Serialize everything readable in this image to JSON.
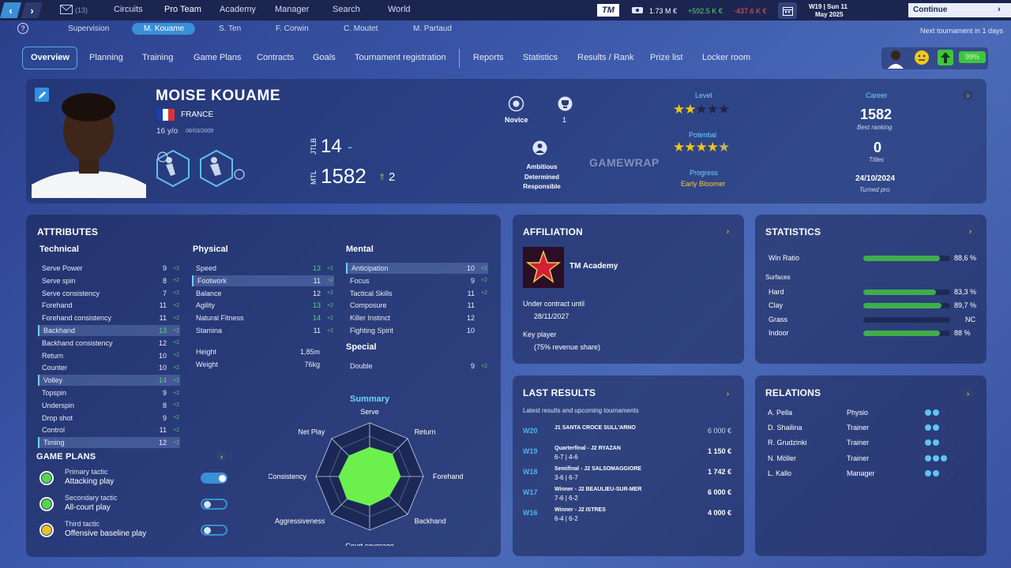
{
  "topbar": {
    "mail_count": "(13)",
    "nav": [
      "Circuits",
      "Pro Team",
      "Academy",
      "Manager",
      "Search",
      "World"
    ],
    "logo": "TM",
    "money": "1.73 M €",
    "gain": "+592.5 K €",
    "loss": "-437.6 K €",
    "week": "W19 | Sun 11",
    "month": "May 2025",
    "continue": "Continue"
  },
  "subnav": {
    "items": [
      "Supervision",
      "M. Kouame",
      "S. Ten",
      "F. Corwin",
      "C. Moutet",
      "M. Partaud"
    ],
    "next": "Next tournament in 1 days"
  },
  "tabs": [
    "Overview",
    "Planning",
    "Training",
    "Game Plans",
    "Contracts",
    "Goals",
    "Tournament registration",
    "Reports",
    "Statistics",
    "Results / Rank",
    "Prize list",
    "Locker room"
  ],
  "mood": {
    "energy": "99%"
  },
  "player": {
    "name": "MOISE KOUAME",
    "country": "FRANCE",
    "age": "16 y/o",
    "dob": "06/03/2009",
    "jtlb_label": "JTLB",
    "jtlb": "14",
    "jtlb_dash": "-",
    "mtl_label": "MTL",
    "mtl": "1582",
    "mtl_change": "2",
    "rank_label": "Novice",
    "titles_small": "1",
    "traits": [
      "Ambitious",
      "Determined",
      "Responsible"
    ],
    "level_label": "Level",
    "level_stars": 2,
    "potential_label": "Potential",
    "potential_stars": 4.5,
    "progress_label": "Progress",
    "progress": "Early Bloomer",
    "career_label": "Career",
    "best_ranking": "1582",
    "best_ranking_label": "Best ranking",
    "titles": "0",
    "titles_label": "Titles",
    "turned_pro": "24/10/2024",
    "turned_pro_label": "Turned pro",
    "watermark": "GAMEWRAP"
  },
  "attributes": {
    "title": "ATTRIBUTES",
    "technical_title": "Technical",
    "technical": [
      {
        "n": "Serve Power",
        "v": "9",
        "p": "+2"
      },
      {
        "n": "Serve spin",
        "v": "8",
        "p": "+2"
      },
      {
        "n": "Serve consistency",
        "v": "7",
        "p": "+2"
      },
      {
        "n": "Forehand",
        "v": "11",
        "p": "+2"
      },
      {
        "n": "Forehand consistency",
        "v": "11",
        "p": "+2"
      },
      {
        "n": "Backhand",
        "v": "13",
        "p": "+2"
      },
      {
        "n": "Backhand consistency",
        "v": "12",
        "p": "+2"
      },
      {
        "n": "Return",
        "v": "10",
        "p": "+2"
      },
      {
        "n": "Counter",
        "v": "10",
        "p": "+2"
      },
      {
        "n": "Volley",
        "v": "14",
        "p": "+2"
      },
      {
        "n": "Topspin",
        "v": "9",
        "p": "+2"
      },
      {
        "n": "Underspin",
        "v": "8",
        "p": "+2"
      },
      {
        "n": "Drop shot",
        "v": "9",
        "p": "+2"
      },
      {
        "n": "Control",
        "v": "11",
        "p": "+2"
      },
      {
        "n": "Timing",
        "v": "12",
        "p": "+2"
      }
    ],
    "physical_title": "Physical",
    "physical": [
      {
        "n": "Speed",
        "v": "13",
        "p": "+2"
      },
      {
        "n": "Footwork",
        "v": "11",
        "p": "+2"
      },
      {
        "n": "Balance",
        "v": "12",
        "p": "+2"
      },
      {
        "n": "Agility",
        "v": "13",
        "p": "+2"
      },
      {
        "n": "Natural Fitness",
        "v": "14",
        "p": "+2"
      },
      {
        "n": "Stamina",
        "v": "11",
        "p": "+2"
      }
    ],
    "height_label": "Height",
    "height": "1,85m",
    "weight_label": "Weight",
    "weight": "76kg",
    "mental_title": "Mental",
    "mental": [
      {
        "n": "Anticipation",
        "v": "10",
        "p": "+2"
      },
      {
        "n": "Focus",
        "v": "9",
        "p": "+2"
      },
      {
        "n": "Tactical Skills",
        "v": "11",
        "p": "+2"
      },
      {
        "n": "Composure",
        "v": "11",
        "p": ""
      },
      {
        "n": "Killer Instinct",
        "v": "12",
        "p": ""
      },
      {
        "n": "Fighting Spirit",
        "v": "10",
        "p": ""
      }
    ],
    "special_title": "Special",
    "special": [
      {
        "n": "Double",
        "v": "9",
        "p": "+2"
      }
    ]
  },
  "game_plans": {
    "title": "GAME PLANS",
    "plans": [
      {
        "label": "Primary tactic",
        "value": "Attacking play",
        "color": "#55d64b",
        "on": true
      },
      {
        "label": "Secondary tactic",
        "value": "All-court play",
        "color": "#55d64b",
        "on": false
      },
      {
        "label": "Third tactic",
        "value": "Offensive baseline play",
        "color": "#e8c22a",
        "on": false
      }
    ]
  },
  "summary": {
    "title": "Summary",
    "axes": [
      "Serve",
      "Return",
      "Forehand",
      "Backhand",
      "Court coverage",
      "Aggressiveness",
      "Consistency",
      "Net Play"
    ],
    "values": [
      0.55,
      0.6,
      0.58,
      0.52,
      0.55,
      0.6,
      0.58,
      0.55
    ],
    "fill": "#6cf04e"
  },
  "affiliation": {
    "title": "AFFILIATION",
    "academy": "TM Academy",
    "contract_label": "Under contract until",
    "contract_date": "28/11/2027",
    "key_label": "Key player",
    "key_share": "(75% revenue share)"
  },
  "statistics": {
    "title": "STATISTICS",
    "win_label": "Win Ratio",
    "win_value": "88,6 %",
    "win_pct": 0.886,
    "surfaces_label": "Surfaces",
    "surfaces": [
      {
        "n": "Hard",
        "v": "83,3 %",
        "pct": 0.833
      },
      {
        "n": "Clay",
        "v": "89,7 %",
        "pct": 0.897
      },
      {
        "n": "Grass",
        "v": "NC",
        "pct": 0
      },
      {
        "n": "Indoor",
        "v": "88 %",
        "pct": 0.88
      }
    ]
  },
  "last_results": {
    "title": "LAST RESULTS",
    "subtitle": "Latest results and upcoming tournaments",
    "rows": [
      {
        "week": "W20",
        "event": "J1 SANTA CROCE SULL'ARNO",
        "score": "",
        "prize": "6 000 €",
        "bold": false
      },
      {
        "week": "W19",
        "event": "Quarterfinal - J2 RYAZAN",
        "score": "6-7 | 4-6",
        "prize": "1 150 €",
        "bold": true
      },
      {
        "week": "W18",
        "event": "Semifinal - J2 SALSOMAGGIORE",
        "score": "3-6 | 6-7",
        "prize": "1 742 €",
        "bold": true
      },
      {
        "week": "W17",
        "event": "Winner - J2 BEAULIEU-SUR-MER",
        "score": "7-6 | 6-2",
        "prize": "6 000 €",
        "bold": true
      },
      {
        "week": "W16",
        "event": "Winner - J2 ISTRES",
        "score": "6-4 | 6-2",
        "prize": "4 000 €",
        "bold": true
      }
    ]
  },
  "relations": {
    "title": "RELATIONS",
    "rows": [
      {
        "n": "A. Pella",
        "r": "Physio"
      },
      {
        "n": "D. Shailina",
        "r": "Trainer"
      },
      {
        "n": "R. Grudzinki",
        "r": "Trainer"
      },
      {
        "n": "N. Möller",
        "r": "Trainer"
      },
      {
        "n": "L. Kallo",
        "r": "Manager"
      }
    ]
  }
}
